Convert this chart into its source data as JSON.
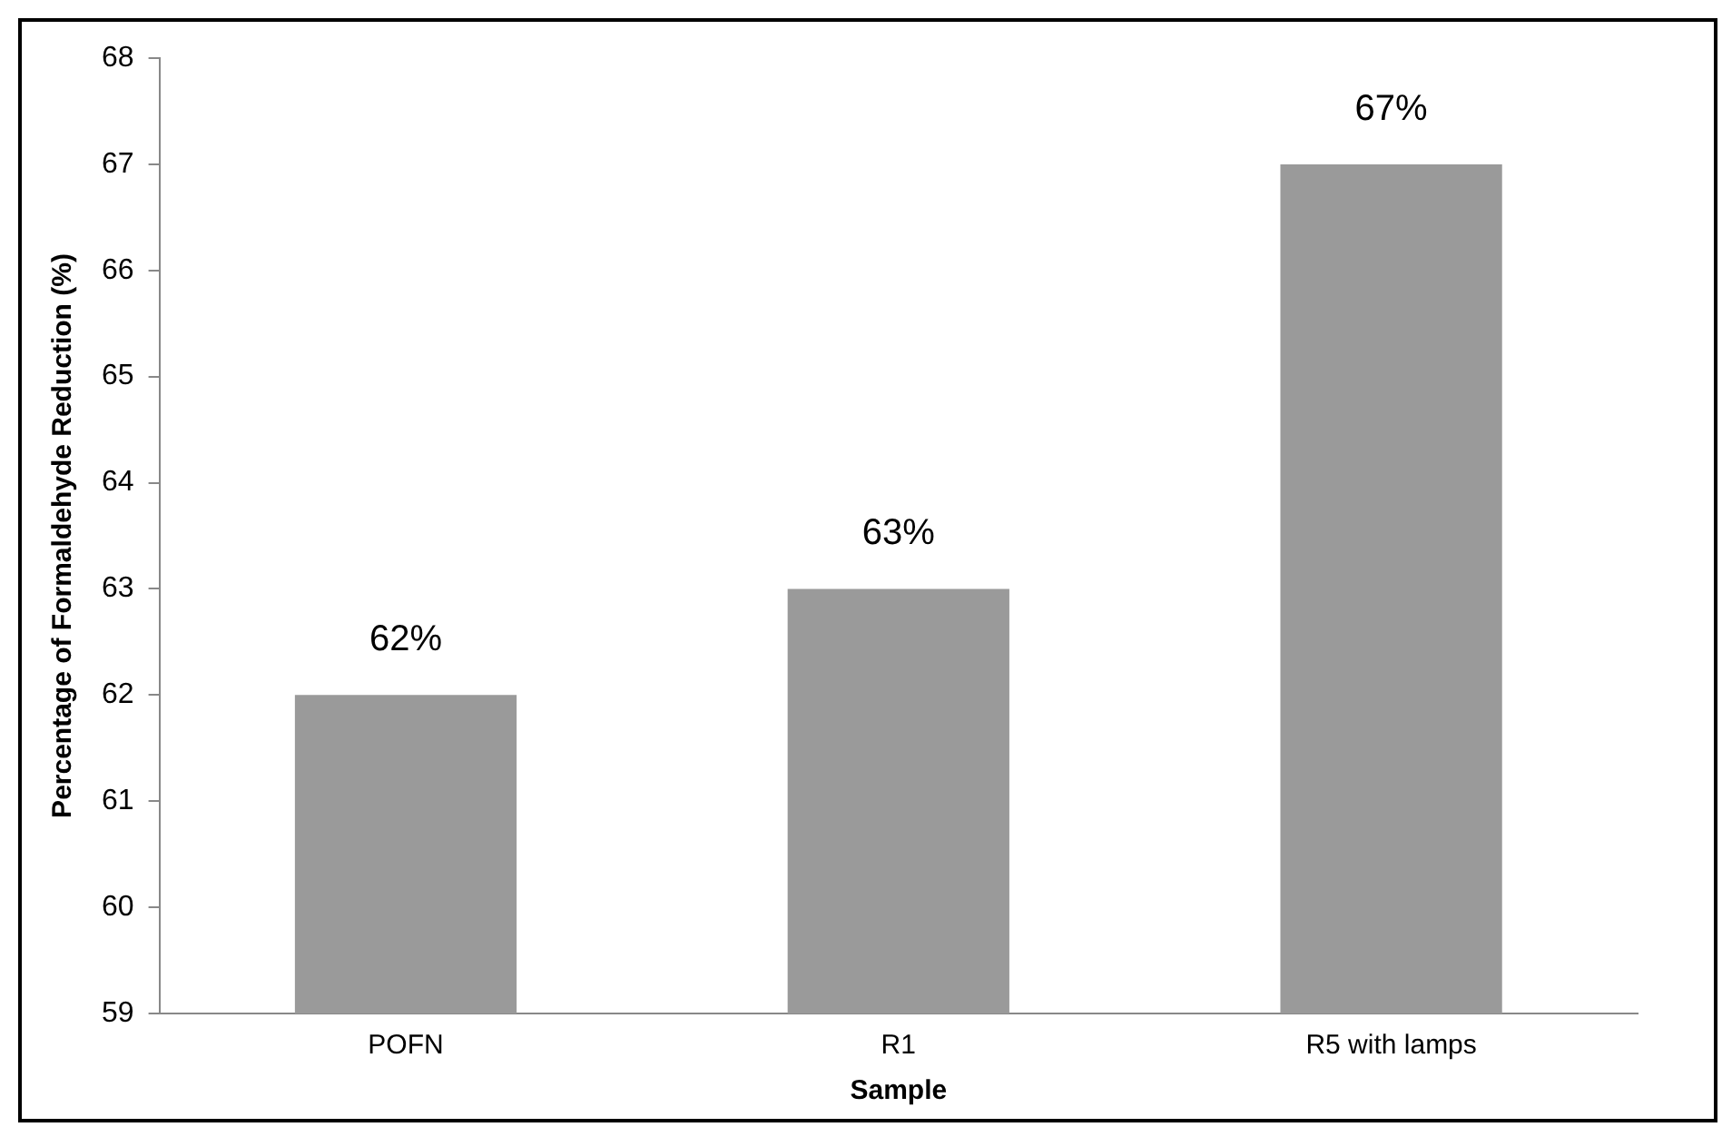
{
  "chart_data": {
    "type": "bar",
    "xlabel": "Sample",
    "ylabel": "Percentage of Formaldehyde Reduction (%)",
    "categories": [
      "POFN",
      "R1",
      "R5 with lamps"
    ],
    "values": [
      62,
      63,
      67
    ],
    "value_labels": [
      "62%",
      "63%",
      "67%"
    ],
    "color": "#9a9a9a",
    "ylim": [
      59,
      68
    ],
    "yticks": [
      59,
      60,
      61,
      62,
      63,
      64,
      65,
      66,
      67,
      68
    ],
    "grid": false,
    "legend": false
  }
}
